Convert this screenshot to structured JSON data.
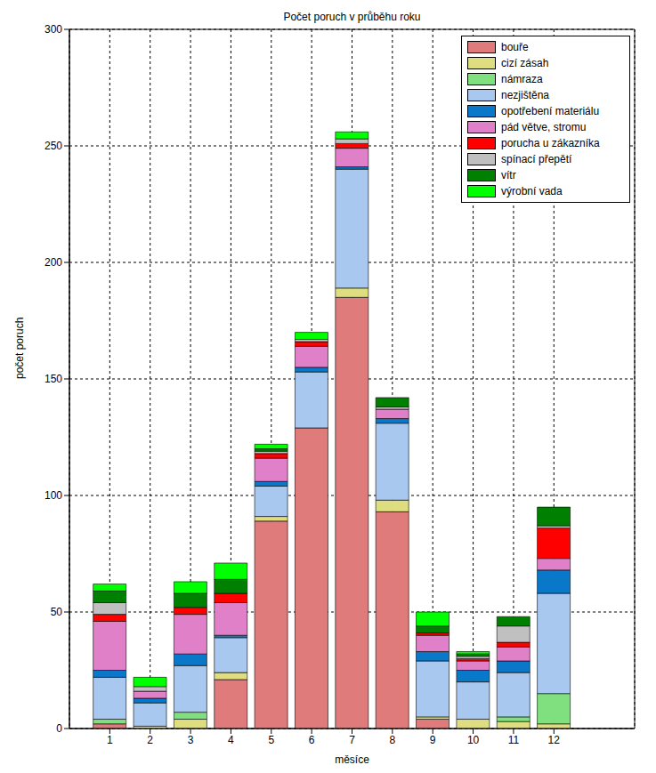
{
  "chart_data": {
    "type": "bar",
    "title": "Počet poruch v průběhu roku",
    "x_label": "měsíce",
    "y_label": "počet poruch",
    "x": [
      1,
      2,
      3,
      4,
      5,
      6,
      7,
      8,
      9,
      10,
      11,
      12
    ],
    "xlim": [
      0,
      14
    ],
    "xticks": [
      1,
      2,
      3,
      4,
      5,
      6,
      7,
      8,
      9,
      10,
      11,
      12
    ],
    "ylim": [
      0,
      300
    ],
    "yticks": [
      0,
      50,
      100,
      150,
      200,
      250,
      300
    ],
    "grid": true,
    "stacked": true,
    "legend": "top right",
    "series": [
      {
        "name": "bouře",
        "color": "#e07b7b",
        "values": [
          2,
          0,
          0,
          21,
          89,
          129,
          185,
          93,
          4,
          0,
          0,
          0
        ]
      },
      {
        "name": "cizí zásah",
        "color": "#dede80",
        "values": [
          0,
          1,
          4,
          3,
          2,
          0,
          4,
          5,
          1,
          4,
          3,
          2
        ]
      },
      {
        "name": "námraza",
        "color": "#80e080",
        "values": [
          2,
          0,
          3,
          0,
          0,
          0,
          0,
          0,
          0,
          0,
          2,
          13
        ]
      },
      {
        "name": "nezjištěna",
        "color": "#a8c8f0",
        "values": [
          18,
          10,
          20,
          15,
          13,
          24,
          51,
          33,
          24,
          16,
          19,
          43
        ]
      },
      {
        "name": "opotřebení materiálu",
        "color": "#0a78c8",
        "values": [
          3,
          2,
          5,
          1,
          2,
          2,
          1,
          2,
          4,
          5,
          5,
          10
        ]
      },
      {
        "name": "pád větve, stromu",
        "color": "#e080c8",
        "values": [
          21,
          3,
          17,
          14,
          10,
          9,
          8,
          4,
          7,
          4,
          6,
          5
        ]
      },
      {
        "name": "porucha u zákazníka",
        "color": "#ff0000",
        "values": [
          3,
          0,
          3,
          4,
          2,
          2,
          2,
          0,
          1,
          1,
          2,
          13
        ]
      },
      {
        "name": "spínací přepětí",
        "color": "#c0c0c0",
        "values": [
          5,
          2,
          0,
          0,
          1,
          1,
          2,
          1,
          0,
          1,
          7,
          1
        ]
      },
      {
        "name": "vítr",
        "color": "#008000",
        "values": [
          5,
          0,
          6,
          6,
          1,
          0,
          0,
          4,
          3,
          1,
          4,
          8
        ]
      },
      {
        "name": "výrobní vada",
        "color": "#00ff00",
        "values": [
          3,
          4,
          5,
          7,
          2,
          3,
          3,
          0,
          6,
          1,
          0,
          0
        ]
      }
    ]
  }
}
